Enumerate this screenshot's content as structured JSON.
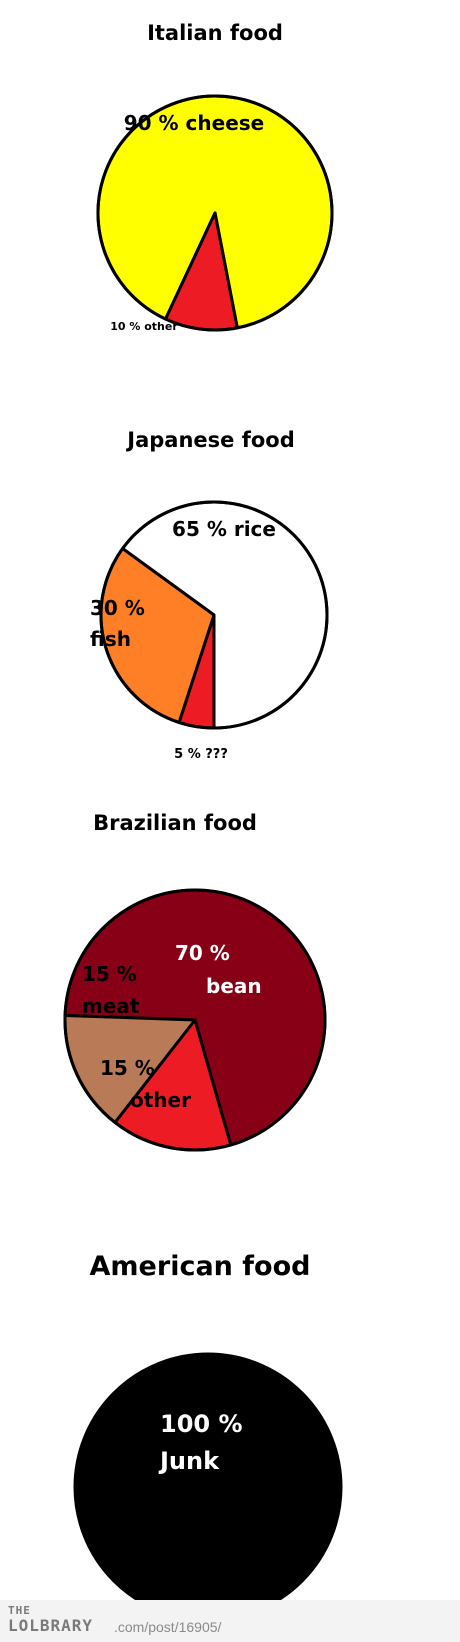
{
  "chart_data": [
    {
      "type": "pie",
      "title": "Italian food",
      "slices": [
        {
          "label": "90 % cheese",
          "value": 90,
          "color": "#ffff00"
        },
        {
          "label": "10 % other",
          "value": 10,
          "color": "#ed1c24"
        }
      ]
    },
    {
      "type": "pie",
      "title": "Japanese food",
      "slices": [
        {
          "label": "65 % rice",
          "value": 65,
          "color": "#ffffff"
        },
        {
          "label": "30 % fish",
          "value": 30,
          "color": "#ff7f27"
        },
        {
          "label": "5 % ???",
          "value": 5,
          "color": "#ed1c24"
        }
      ]
    },
    {
      "type": "pie",
      "title": "Brazilian food",
      "slices": [
        {
          "label": "70 % bean",
          "value": 70,
          "color": "#880015"
        },
        {
          "label": "15 % meat",
          "value": 15,
          "color": "#b97a57"
        },
        {
          "label": "15 % other",
          "value": 15,
          "color": "#ed1c24"
        }
      ]
    },
    {
      "type": "pie",
      "title": "American food",
      "slices": [
        {
          "label": "100 % Junk",
          "value": 100,
          "color": "#000000"
        }
      ]
    }
  ],
  "footer": {
    "the": "THE",
    "brand": "LOLBRARY",
    "url": ".com/post/16905/"
  }
}
